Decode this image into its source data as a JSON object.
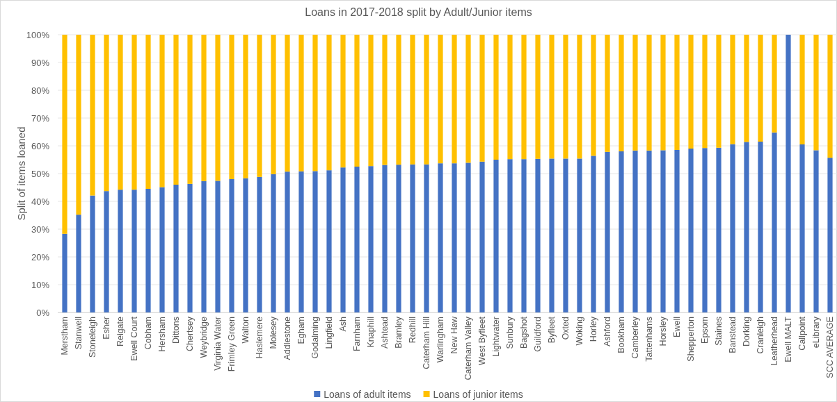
{
  "chart_data": {
    "type": "bar",
    "title": "Loans in 2017-2018 split by Adult/Junior items",
    "ylabel": "Split of items loaned",
    "categories": [
      "Merstham",
      "Stanwell",
      "Stoneleigh",
      "Esher",
      "Reigate",
      "Ewell Court",
      "Cobham",
      "Hersham",
      "Dittons",
      "Chertsey",
      "Weybridge",
      "Virginia Water",
      "Frimley Green",
      "Walton",
      "Haslemere",
      "Molesey",
      "Addlestone",
      "Egham",
      "Godalming",
      "Lingfield",
      "Ash",
      "Farnham",
      "Knaphill",
      "Ashtead",
      "Bramley",
      "Redhill",
      "Caterham Hill",
      "Warlingham",
      "New Haw",
      "Caterham Valley",
      "West Byfleet",
      "Lightwater",
      "Sunbury",
      "Bagshot",
      "Guildford",
      "Byfleet",
      "Oxted",
      "Woking",
      "Horley",
      "Ashford",
      "Bookham",
      "Camberley",
      "Tattenhams",
      "Horsley",
      "Ewell",
      "Shepperton",
      "Epsom",
      "Staines",
      "Banstead",
      "Dorking",
      "Cranleigh",
      "Leatherhead",
      "Ewell MALT",
      "Callpoint",
      "eLibrary",
      "SCC AVERAGE"
    ],
    "series": [
      {
        "name": "Loans of adult items",
        "color": "#4472c4",
        "values": [
          28.3,
          35.2,
          42.1,
          43.7,
          44.2,
          44.2,
          44.5,
          45.1,
          46.0,
          46.3,
          47.3,
          47.4,
          48.0,
          48.3,
          48.8,
          49.8,
          50.7,
          50.8,
          50.9,
          51.2,
          52.2,
          52.5,
          52.7,
          53.1,
          53.2,
          53.3,
          53.3,
          53.7,
          53.7,
          53.9,
          54.3,
          55.0,
          55.2,
          55.2,
          55.3,
          55.4,
          55.4,
          55.4,
          56.4,
          57.8,
          58.0,
          58.3,
          58.3,
          58.4,
          58.5,
          59.0,
          59.2,
          59.3,
          60.6,
          61.4,
          61.5,
          64.8,
          100,
          60.5,
          58.4,
          55.7
        ]
      },
      {
        "name": "Loans of junior items",
        "color": "#ffc000",
        "values": [
          71.7,
          64.8,
          57.9,
          56.3,
          55.8,
          55.8,
          55.5,
          54.9,
          54.0,
          53.7,
          52.7,
          52.6,
          52.0,
          51.7,
          51.2,
          50.2,
          49.3,
          49.2,
          49.1,
          48.8,
          47.8,
          47.5,
          47.3,
          46.9,
          46.8,
          46.7,
          46.7,
          46.3,
          46.3,
          46.1,
          45.7,
          45.0,
          44.8,
          44.8,
          44.7,
          44.6,
          44.6,
          44.6,
          43.6,
          42.2,
          42.0,
          41.7,
          41.7,
          41.6,
          41.5,
          41.0,
          40.8,
          40.7,
          39.4,
          38.6,
          38.5,
          35.2,
          0,
          39.5,
          41.6,
          44.3
        ]
      }
    ],
    "stacked": true,
    "ylim": [
      0,
      100
    ],
    "yticks": [
      {
        "value": 0,
        "label": "0%"
      },
      {
        "value": 10,
        "label": "10%"
      },
      {
        "value": 20,
        "label": "20%"
      },
      {
        "value": 30,
        "label": "30%"
      },
      {
        "value": 40,
        "label": "40%"
      },
      {
        "value": 50,
        "label": "50%"
      },
      {
        "value": 60,
        "label": "60%"
      },
      {
        "value": 70,
        "label": "70%"
      },
      {
        "value": 80,
        "label": "80%"
      },
      {
        "value": 90,
        "label": "90%"
      },
      {
        "value": 100,
        "label": "100%"
      }
    ],
    "grid": "y",
    "legend": "bottom"
  }
}
